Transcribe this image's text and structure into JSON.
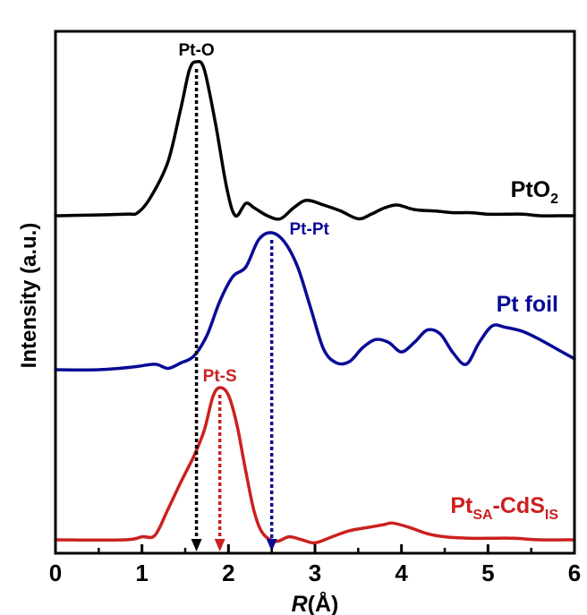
{
  "chart_data": {
    "type": "line",
    "xlabel_italic": "R",
    "xlabel_unit": "(Å)",
    "ylabel": "Intensity (a.u.)",
    "xlim": [
      0,
      6
    ],
    "x_ticks": [
      "0",
      "1",
      "2",
      "3",
      "4",
      "5",
      "6"
    ],
    "y_ticks_shown": false,
    "grid": false,
    "legend": "inline labels at right of each curve",
    "series": [
      {
        "name": "PtO2",
        "label_main": "PtO",
        "label_sub": "2",
        "color": "#000000",
        "offset": 2,
        "x": [
          0.0,
          0.8,
          0.95,
          1.1,
          1.3,
          1.45,
          1.55,
          1.63,
          1.72,
          1.85,
          1.98,
          2.08,
          2.2,
          2.3,
          2.45,
          2.6,
          2.75,
          2.9,
          3.1,
          3.3,
          3.5,
          3.65,
          3.8,
          3.95,
          4.15,
          4.4,
          4.6,
          4.8,
          5.0,
          5.2,
          5.4,
          5.6,
          5.8,
          6.0
        ],
        "y": [
          0.0,
          0.01,
          0.02,
          0.12,
          0.35,
          0.7,
          0.95,
          1.0,
          0.95,
          0.6,
          0.18,
          0.0,
          0.08,
          0.05,
          0.0,
          -0.02,
          0.05,
          0.1,
          0.07,
          0.03,
          -0.02,
          0.01,
          0.05,
          0.07,
          0.04,
          0.03,
          0.02,
          0.02,
          0.01,
          0.01,
          0.01,
          0.0,
          0.0,
          0.0
        ]
      },
      {
        "name": "Pt foil",
        "label_main": "Pt foil",
        "label_sub": "",
        "color": "#0a0a96",
        "offset": 1,
        "x": [
          0.0,
          0.5,
          0.9,
          1.15,
          1.3,
          1.45,
          1.6,
          1.75,
          1.9,
          2.05,
          2.2,
          2.35,
          2.5,
          2.65,
          2.8,
          2.95,
          3.1,
          3.25,
          3.4,
          3.55,
          3.7,
          3.85,
          4.0,
          4.15,
          4.3,
          4.45,
          4.6,
          4.75,
          4.9,
          5.05,
          5.2,
          5.4,
          5.6,
          5.8,
          6.0
        ],
        "y": [
          0.0,
          0.0,
          0.02,
          0.04,
          0.01,
          0.05,
          0.1,
          0.25,
          0.5,
          0.68,
          0.75,
          0.95,
          1.0,
          0.93,
          0.75,
          0.45,
          0.15,
          0.05,
          0.06,
          0.16,
          0.22,
          0.2,
          0.13,
          0.2,
          0.29,
          0.26,
          0.12,
          0.04,
          0.2,
          0.32,
          0.31,
          0.28,
          0.22,
          0.15,
          0.08
        ]
      },
      {
        "name": "PtSA-CdSIS",
        "label_main": "Pt",
        "label_sub": "SA",
        "label_main2": "-CdS",
        "label_sub2": "IS",
        "color": "#cc2020",
        "offset": 0,
        "x": [
          0.0,
          0.8,
          1.0,
          1.15,
          1.3,
          1.45,
          1.6,
          1.72,
          1.82,
          1.9,
          2.0,
          2.1,
          2.2,
          2.3,
          2.4,
          2.55,
          2.7,
          2.85,
          3.0,
          3.2,
          3.4,
          3.6,
          3.8,
          3.9,
          4.1,
          4.3,
          4.5,
          4.8,
          5.0,
          5.3,
          5.6,
          6.0
        ],
        "y": [
          0.0,
          0.0,
          0.02,
          0.03,
          0.2,
          0.38,
          0.55,
          0.72,
          0.94,
          1.0,
          0.95,
          0.75,
          0.45,
          0.18,
          0.04,
          -0.01,
          0.02,
          0.0,
          -0.02,
          0.02,
          0.06,
          0.08,
          0.1,
          0.11,
          0.08,
          0.04,
          0.02,
          0.01,
          0.01,
          0.01,
          0.0,
          0.0
        ]
      }
    ],
    "annotations": [
      {
        "text": "Pt-O",
        "x": 1.63,
        "color": "#000000",
        "series": "PtO2"
      },
      {
        "text": "Pt-Pt",
        "x": 2.5,
        "color": "#0a0a96",
        "series": "Pt foil"
      },
      {
        "text": "Pt-S",
        "x": 1.9,
        "color": "#cc2020",
        "series": "PtSA-CdSIS"
      }
    ]
  }
}
